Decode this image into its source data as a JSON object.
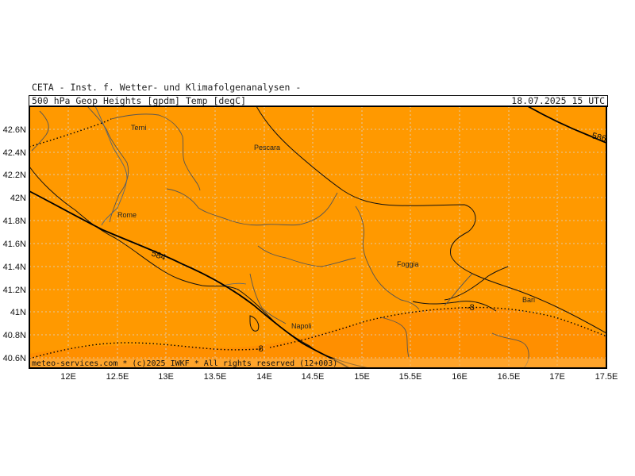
{
  "header": {
    "institute": "CETA - Inst. f. Wetter- und Klimafolgenanalysen -",
    "parameter": "500_hPa_Geop_Heights_[gpdm]_Temp_[degC]",
    "valid_time": "18.07.2025 15 UTC"
  },
  "footer": {
    "credit": "meteo-services.com * (c)2025 IWKF * All rights reserved (12+003)"
  },
  "axes": {
    "lat_labels": [
      "42.6N",
      "42.4N",
      "42.2N",
      "42N",
      "41.8N",
      "41.6N",
      "41.4N",
      "41.2N",
      "41N",
      "40.8N",
      "40.6N"
    ],
    "lon_labels": [
      "12E",
      "12.5E",
      "13E",
      "13.5E",
      "14E",
      "14.5E",
      "15E",
      "15.5E",
      "16E",
      "16.5E",
      "17E",
      "17.5E"
    ]
  },
  "cities": [
    {
      "name": "Terni"
    },
    {
      "name": "Pescara"
    },
    {
      "name": "Rome"
    },
    {
      "name": "Foggia"
    },
    {
      "name": "Bari"
    },
    {
      "name": "Napoli"
    }
  ],
  "contours": {
    "geopotential_584": "584",
    "geopotential_586": "586",
    "temp_minus8_west": "-8",
    "temp_minus8_east": "-8"
  },
  "colors": {
    "fill_main": "#ff9900",
    "fill_south": "#ff8800",
    "border": "#000000"
  }
}
